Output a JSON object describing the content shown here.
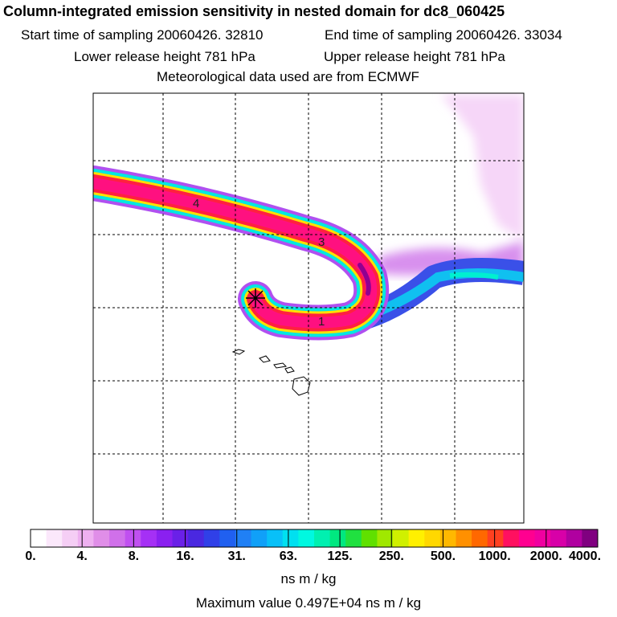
{
  "header": {
    "title": "Column-integrated emission sensitivity in nested domain for dc8_060425",
    "start_label": "Start time of sampling 20060426. 32810",
    "end_label": "End time of sampling 20060426. 33034",
    "lower_label": "Lower release height  781 hPa",
    "upper_label": "Upper release height  781 hPa",
    "met_label": "Meteorological data used are from ECMWF"
  },
  "chart_data": {
    "type": "heatmap",
    "title": "Column-integrated emission sensitivity in nested domain for dc8_060425",
    "colorbar": {
      "ticks": [
        "0.",
        "4.",
        "8.",
        "16.",
        "31.",
        "63.",
        "125.",
        "250.",
        "500.",
        "1000.",
        "2000.",
        "4000."
      ],
      "colors": [
        "#ffffff",
        "#fbe8fb",
        "#f5cef5",
        "#eeb0f0",
        "#e08ee8",
        "#d070ea",
        "#c050f0",
        "#a530f5",
        "#8a20f0",
        "#6a20e8",
        "#4a28e0",
        "#3040e8",
        "#2060f0",
        "#2080f5",
        "#10a0f8",
        "#08c0f8",
        "#00e0f0",
        "#00f8e0",
        "#00f0b0",
        "#00e880",
        "#20e040",
        "#60e000",
        "#a0e800",
        "#d0f000",
        "#fff000",
        "#ffd800",
        "#ffb800",
        "#ff9000",
        "#ff6800",
        "#ff4020",
        "#ff1060",
        "#ff0090",
        "#f000a0",
        "#d800a8",
        "#b000a0",
        "#800080"
      ],
      "units": "ns m / kg"
    },
    "annotations": [
      "1",
      "3",
      "4"
    ],
    "max_value_label": "Maximum value  0.497E+04 ns m / kg"
  },
  "colors": {
    "plume_core": "#ff1060",
    "plume_edge": "#00f0c0",
    "diffuse": "#f0c8f5",
    "grid": "#000000"
  }
}
